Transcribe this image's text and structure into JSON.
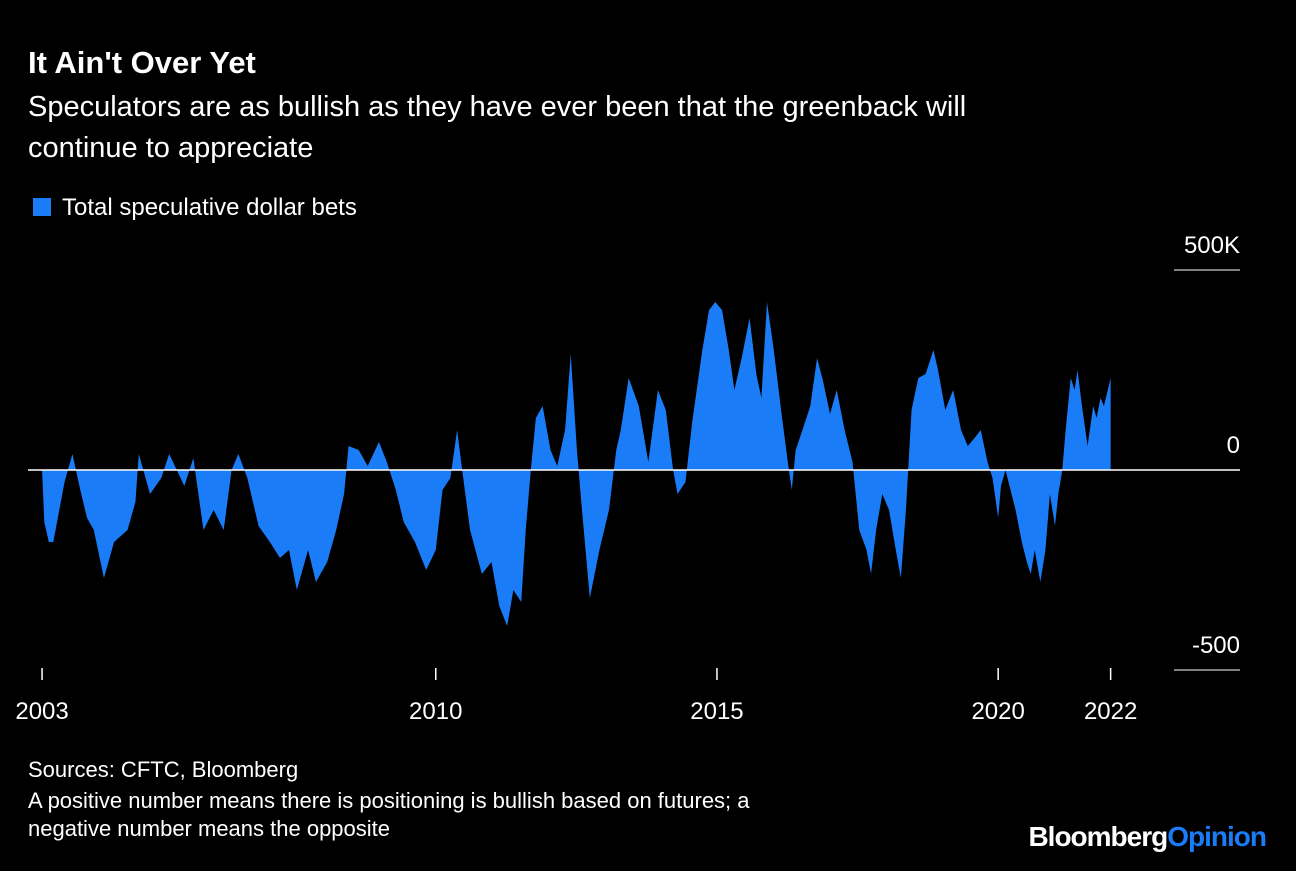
{
  "chart_data": {
    "type": "area",
    "title": "It Ain't Over Yet",
    "subtitle": [
      "Speculators are as bullish as they have ever been that the greenback will",
      "continue to appreciate"
    ],
    "source": "Sources: CFTC, Bloomberg",
    "note": [
      "A positive number means there is positioning is bullish based on futures; a",
      "negative number means the opposite"
    ],
    "logo": [
      "Bloomberg",
      "Opinion"
    ],
    "xlim": [
      2002.75,
      2024.3
    ],
    "xticks": [
      2003,
      2010,
      2015,
      2020,
      2022
    ],
    "ylim": [
      -500,
      500
    ],
    "yticks": [
      {
        "value": 500,
        "label": "500K"
      },
      0,
      -500
    ],
    "x": [
      2003.0,
      2003.04,
      2003.12,
      2003.2,
      2003.4,
      2003.54,
      2003.68,
      2003.8,
      2003.92,
      2004.1,
      2004.28,
      2004.52,
      2004.66,
      2004.72,
      2004.92,
      2005.12,
      2005.26,
      2005.53,
      2005.69,
      2005.87,
      2006.05,
      2006.23,
      2006.37,
      2006.49,
      2006.65,
      2006.85,
      2007.05,
      2007.23,
      2007.39,
      2007.53,
      2007.73,
      2007.87,
      2008.07,
      2008.23,
      2008.37,
      2008.45,
      2008.63,
      2008.79,
      2008.99,
      2009.13,
      2009.29,
      2009.43,
      2009.63,
      2009.83,
      2010.0,
      2010.12,
      2010.26,
      2010.38,
      2010.47,
      2010.61,
      2010.82,
      2010.99,
      2011.13,
      2011.27,
      2011.38,
      2011.52,
      2011.6,
      2011.69,
      2011.78,
      2011.9,
      2012.04,
      2012.16,
      2012.3,
      2012.4,
      2012.51,
      2012.6,
      2012.74,
      2012.91,
      2013.08,
      2013.21,
      2013.29,
      2013.43,
      2013.61,
      2013.78,
      2013.95,
      2014.09,
      2014.22,
      2014.3,
      2014.44,
      2014.56,
      2014.74,
      2014.86,
      2014.97,
      2015.09,
      2015.21,
      2015.31,
      2015.44,
      2015.58,
      2015.7,
      2015.79,
      2015.89,
      2016.01,
      2016.14,
      2016.26,
      2016.33,
      2016.4,
      2016.52,
      2016.66,
      2016.78,
      2016.89,
      2017.01,
      2017.13,
      2017.27,
      2017.41,
      2017.53,
      2017.66,
      2017.74,
      2017.83,
      2017.94,
      2018.06,
      2018.18,
      2018.27,
      2018.36,
      2018.46,
      2018.58,
      2018.71,
      2018.85,
      2018.93,
      2019.06,
      2019.2,
      2019.34,
      2019.46,
      2019.58,
      2019.69,
      2019.81,
      2019.9,
      2020.0,
      2020.05,
      2020.13,
      2020.22,
      2020.31,
      2020.42,
      2020.51,
      2020.58,
      2020.65,
      2020.75,
      2020.84,
      2020.92,
      2021.01,
      2021.07,
      2021.14,
      2021.2,
      2021.29,
      2021.36,
      2021.41,
      2021.49,
      2021.59,
      2021.69,
      2021.75,
      2021.82,
      2021.88,
      2021.95,
      2022.0
    ],
    "series": [
      {
        "name": "Total speculative dollar bets",
        "color": "#1a7cf7",
        "values": [
          0,
          -130,
          -180,
          -180,
          -30,
          40,
          -50,
          -120,
          -150,
          -270,
          -180,
          -150,
          -80,
          40,
          -60,
          -20,
          40,
          -40,
          30,
          -150,
          -100,
          -150,
          0,
          40,
          -20,
          -140,
          -180,
          -220,
          -200,
          -300,
          -200,
          -280,
          -230,
          -150,
          -60,
          60,
          50,
          10,
          70,
          20,
          -50,
          -130,
          -180,
          -250,
          -200,
          -50,
          -20,
          100,
          0,
          -150,
          -260,
          -230,
          -340,
          -390,
          -300,
          -330,
          -150,
          0,
          130,
          160,
          50,
          10,
          100,
          290,
          50,
          -100,
          -320,
          -200,
          -100,
          50,
          100,
          230,
          160,
          20,
          200,
          150,
          0,
          -60,
          -30,
          120,
          300,
          400,
          420,
          400,
          300,
          200,
          280,
          380,
          240,
          180,
          420,
          300,
          150,
          20,
          -50,
          50,
          100,
          160,
          280,
          220,
          140,
          200,
          100,
          20,
          -150,
          -200,
          -260,
          -150,
          -60,
          -100,
          -200,
          -270,
          -100,
          150,
          230,
          240,
          300,
          250,
          150,
          200,
          100,
          60,
          80,
          100,
          20,
          -20,
          -120,
          -40,
          0,
          -50,
          -100,
          -180,
          -230,
          -260,
          -200,
          -280,
          -200,
          -60,
          -140,
          -60,
          0,
          100,
          230,
          200,
          250,
          160,
          60,
          160,
          130,
          180,
          160,
          200,
          230
        ]
      }
    ]
  }
}
